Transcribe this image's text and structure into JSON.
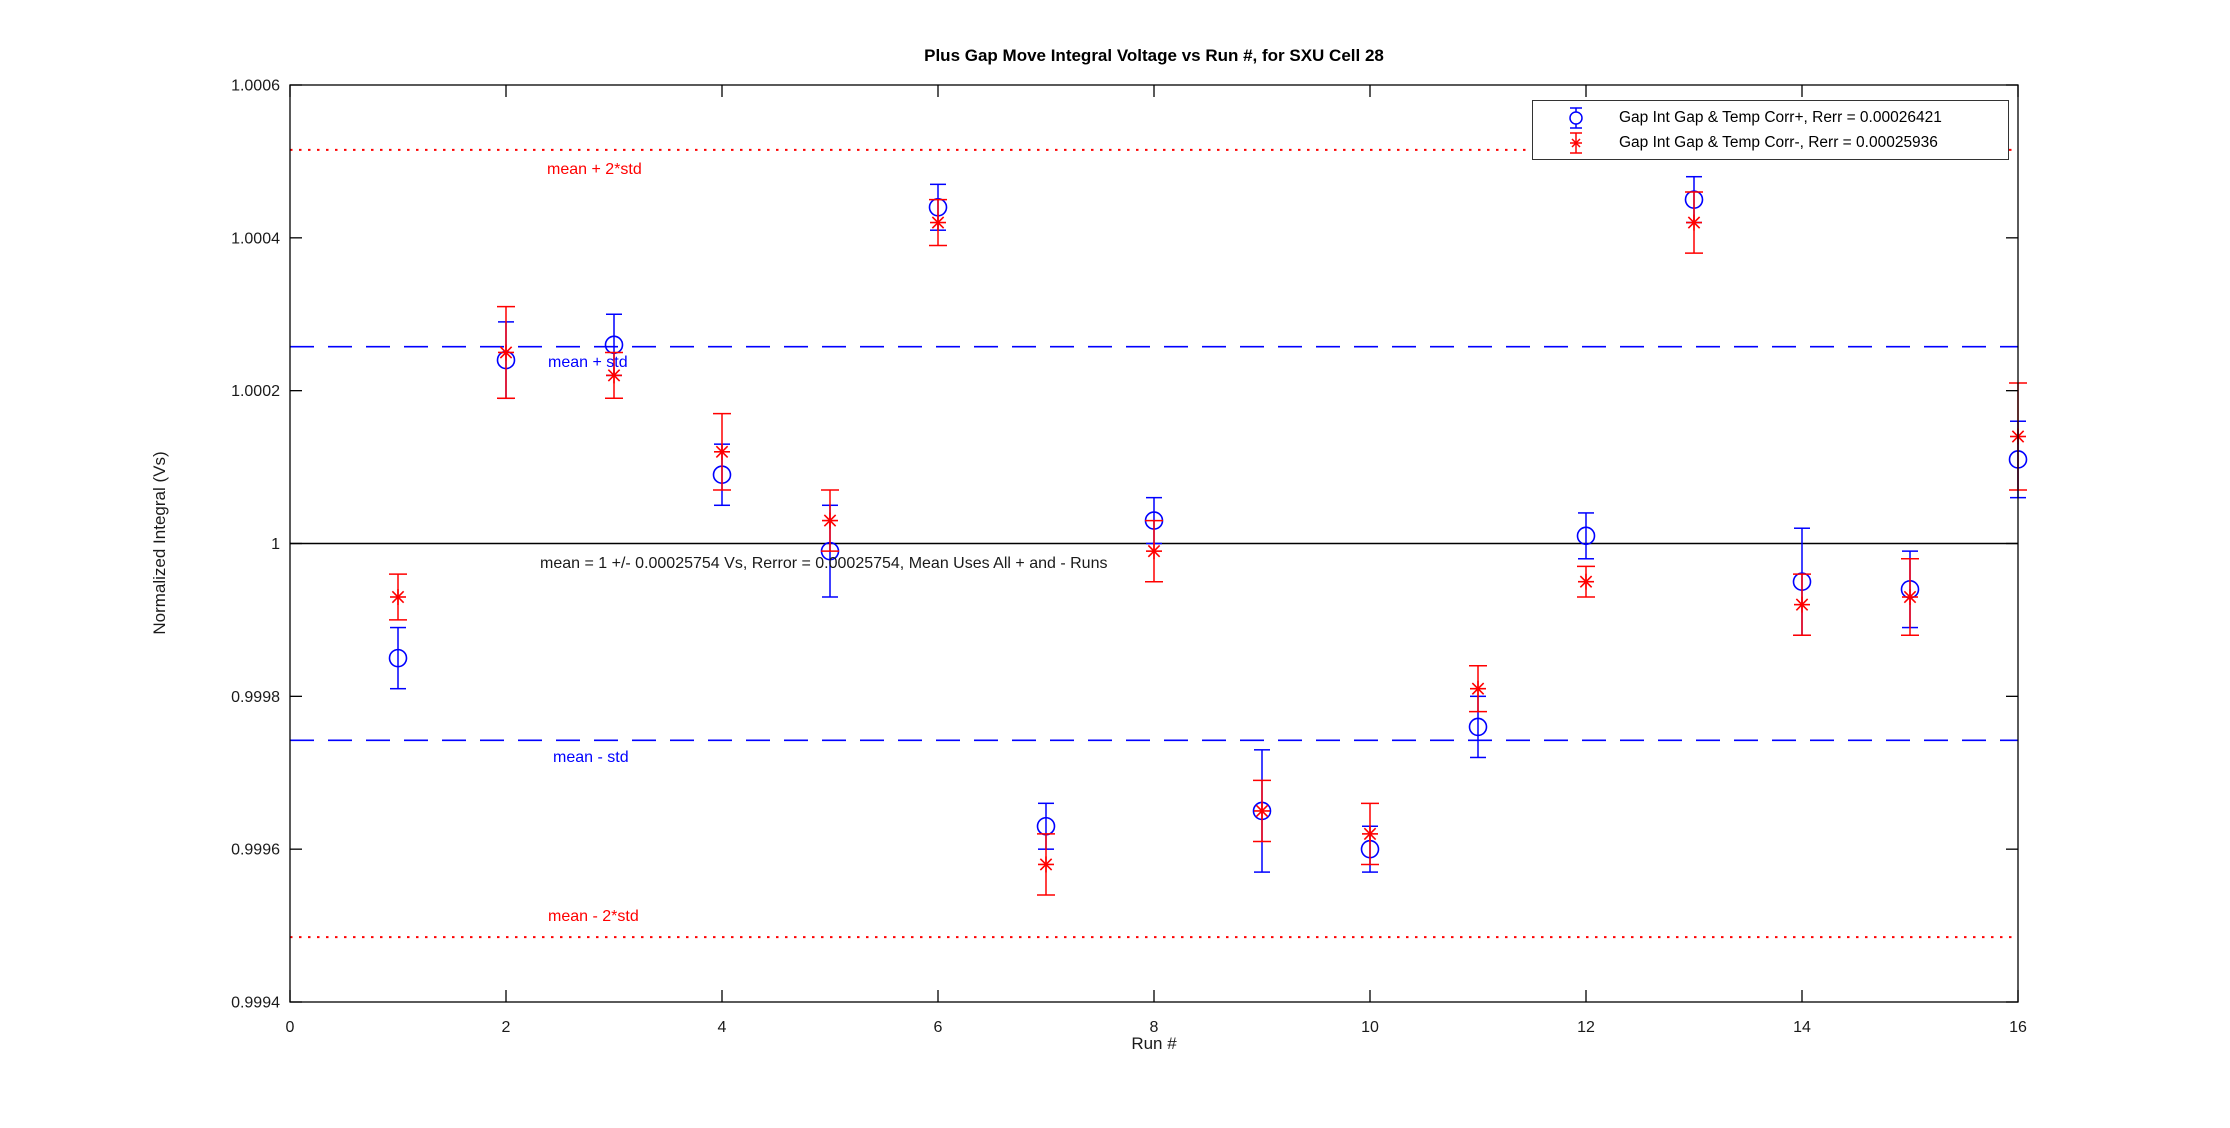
{
  "figure": {
    "background": "#ffffff"
  },
  "chart_data": {
    "type": "scatter",
    "title": "Plus Gap Move Integral Voltage vs Run #, for SXU Cell 28",
    "xlabel": "Run #",
    "ylabel": "Normalized Integral (Vs)",
    "xlim": [
      0,
      16
    ],
    "ylim": [
      0.9994,
      1.0006
    ],
    "x_ticks": [
      "0",
      "2",
      "4",
      "6",
      "8",
      "10",
      "12",
      "14",
      "16"
    ],
    "y_ticks": [
      "0.9994",
      "0.9996",
      "0.9998",
      "1",
      "1.0002",
      "1.0004",
      "1.0006"
    ],
    "grid": false,
    "legend_position": "top-right",
    "colors": {
      "plus_series": "#0000ff",
      "minus_series": "#ff0000",
      "mean_line": "#000000"
    },
    "series": [
      {
        "name": "Gap Int Gap & Temp Corr+, Rerr = 0.00026421",
        "marker": "circle",
        "color": "#0000ff",
        "x": [
          1,
          2,
          3,
          4,
          5,
          6,
          7,
          8,
          9,
          10,
          11,
          12,
          13,
          14,
          15,
          16
        ],
        "y": [
          0.99985,
          1.00024,
          1.00026,
          1.00009,
          0.99999,
          1.00044,
          0.99963,
          1.00003,
          0.99965,
          0.9996,
          0.99976,
          1.00001,
          1.00045,
          0.99995,
          0.99994,
          1.00011
        ],
        "yerr": [
          4e-05,
          5e-05,
          4e-05,
          4e-05,
          6e-05,
          3e-05,
          3e-05,
          3e-05,
          8e-05,
          3e-05,
          4e-05,
          3e-05,
          3e-05,
          7e-05,
          5e-05,
          5e-05
        ]
      },
      {
        "name": "Gap Int Gap & Temp  Corr-, Rerr = 0.00025936",
        "marker": "asterisk",
        "color": "#ff0000",
        "x": [
          1,
          2,
          3,
          4,
          5,
          6,
          7,
          8,
          9,
          10,
          11,
          12,
          13,
          14,
          15,
          16
        ],
        "y": [
          0.99993,
          1.00025,
          1.00022,
          1.00012,
          1.00003,
          1.00042,
          0.99958,
          0.99999,
          0.99965,
          0.99962,
          0.99981,
          0.99995,
          1.00042,
          0.99992,
          0.99993,
          1.00014
        ],
        "yerr": [
          3e-05,
          6e-05,
          3e-05,
          5e-05,
          4e-05,
          3e-05,
          4e-05,
          4e-05,
          4e-05,
          4e-05,
          3e-05,
          2e-05,
          4e-05,
          4e-05,
          5e-05,
          7e-05
        ]
      }
    ],
    "reference_lines": [
      {
        "name": "mean_plus_2std",
        "label": "mean + 2*std",
        "value": 1.00051508,
        "style": "dotted",
        "color": "#ff0000"
      },
      {
        "name": "mean_plus_std",
        "label": "mean + std",
        "value": 1.00025754,
        "style": "dashed",
        "color": "#0000ff"
      },
      {
        "name": "mean",
        "label": "mean = 1 +/- 0.00025754 Vs, Rerror = 0.00025754, Mean Uses All + and - Runs",
        "value": 1,
        "style": "solid",
        "color": "#000000"
      },
      {
        "name": "mean_minus_std",
        "label": "mean - std",
        "value": 0.99974246,
        "style": "dashed",
        "color": "#0000ff"
      },
      {
        "name": "mean_minus_2std",
        "label": "mean - 2*std",
        "value": 0.99948492,
        "style": "dotted",
        "color": "#ff0000"
      }
    ]
  }
}
